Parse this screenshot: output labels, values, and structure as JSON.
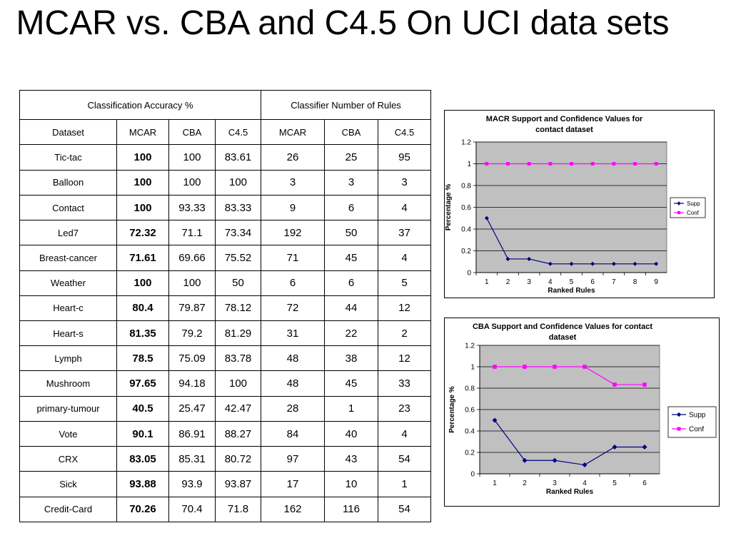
{
  "title": "MCAR vs. CBA and C4.5 On UCI data sets",
  "table": {
    "group_headers": [
      "Classification Accuracy %",
      "Classifier Number of Rules"
    ],
    "columns": [
      "Dataset",
      "MCAR",
      "CBA",
      "C4.5",
      "MCAR",
      "CBA",
      "C4.5"
    ],
    "rows": [
      [
        "Tic-tac",
        "100",
        "100",
        "83.61",
        "26",
        "25",
        "95"
      ],
      [
        "Balloon",
        "100",
        "100",
        "100",
        "3",
        "3",
        "3"
      ],
      [
        "Contact",
        "100",
        "93.33",
        "83.33",
        "9",
        "6",
        "4"
      ],
      [
        "Led7",
        "72.32",
        "71.1",
        "73.34",
        "192",
        "50",
        "37"
      ],
      [
        "Breast-cancer",
        "71.61",
        "69.66",
        "75.52",
        "71",
        "45",
        "4"
      ],
      [
        "Weather",
        "100",
        "100",
        "50",
        "6",
        "6",
        "5"
      ],
      [
        "Heart-c",
        "80.4",
        "79.87",
        "78.12",
        "72",
        "44",
        "12"
      ],
      [
        "Heart-s",
        "81.35",
        "79.2",
        "81.29",
        "31",
        "22",
        "2"
      ],
      [
        "Lymph",
        "78.5",
        "75.09",
        "83.78",
        "48",
        "38",
        "12"
      ],
      [
        "Mushroom",
        "97.65",
        "94.18",
        "100",
        "48",
        "45",
        "33"
      ],
      [
        "primary-tumour",
        "40.5",
        "25.47",
        "42.47",
        "28",
        "1",
        "23"
      ],
      [
        "Vote",
        "90.1",
        "86.91",
        "88.27",
        "84",
        "40",
        "4"
      ],
      [
        "CRX",
        "83.05",
        "85.31",
        "80.72",
        "97",
        "43",
        "54"
      ],
      [
        "Sick",
        "93.88",
        "93.9",
        "93.87",
        "17",
        "10",
        "1"
      ],
      [
        "Credit-Card",
        "70.26",
        "70.4",
        "71.8",
        "162",
        "116",
        "54"
      ]
    ]
  },
  "chart_data": [
    {
      "type": "line",
      "title": "MACR Support and Confidence Values for contact dataset",
      "xlabel": "Ranked Rules",
      "ylabel": "Percentage %",
      "x": [
        1,
        2,
        3,
        4,
        5,
        6,
        7,
        8,
        9
      ],
      "ylim": [
        0,
        1.2
      ],
      "yticks": [
        0,
        0.2,
        0.4,
        0.6,
        0.8,
        1,
        1.2
      ],
      "grid": "horizontal",
      "plot_background": "#c0c0c0",
      "legend_position": "right",
      "series": [
        {
          "name": "Supp",
          "color": "#000080",
          "marker": "diamond",
          "values": [
            0.5,
            0.125,
            0.125,
            0.08,
            0.08,
            0.08,
            0.08,
            0.08,
            0.08
          ]
        },
        {
          "name": "Conf",
          "color": "#ff00ff",
          "marker": "square",
          "values": [
            1,
            1,
            1,
            1,
            1,
            1,
            1,
            1,
            1
          ]
        }
      ]
    },
    {
      "type": "line",
      "title": "CBA Support and Confidence Values for contact dataset",
      "xlabel": "Ranked Rules",
      "ylabel": "Percentage %",
      "x": [
        1,
        2,
        3,
        4,
        5,
        6
      ],
      "ylim": [
        0,
        1.2
      ],
      "yticks": [
        0,
        0.2,
        0.4,
        0.6,
        0.8,
        1,
        1.2
      ],
      "grid": "horizontal",
      "plot_background": "#c0c0c0",
      "legend_position": "right",
      "series": [
        {
          "name": "Supp",
          "color": "#000080",
          "marker": "diamond",
          "values": [
            0.5,
            0.125,
            0.125,
            0.083,
            0.25,
            0.25
          ]
        },
        {
          "name": "Conf",
          "color": "#ff00ff",
          "marker": "square",
          "values": [
            1,
            1,
            1,
            1,
            0.833,
            0.833
          ]
        }
      ]
    }
  ]
}
